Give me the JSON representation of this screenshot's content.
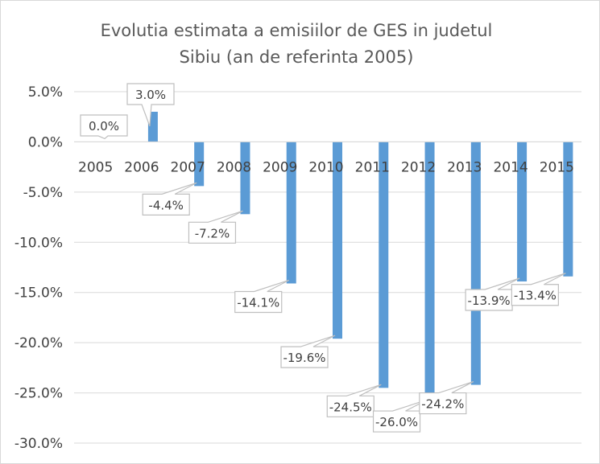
{
  "chart_data": {
    "type": "bar",
    "title": [
      "Evolutia estimata a emisiilor de GES in judetul",
      "Sibiu (an de referinta 2005)"
    ],
    "categories": [
      "2005",
      "2006",
      "2007",
      "2008",
      "2009",
      "2010",
      "2011",
      "2012",
      "2013",
      "2014",
      "2015"
    ],
    "values": [
      0.0,
      3.0,
      -4.4,
      -7.2,
      -14.1,
      -19.6,
      -24.5,
      -26.0,
      -24.2,
      -13.9,
      -13.4
    ],
    "data_labels": [
      "0.0%",
      "3.0%",
      "-4.4%",
      "-7.2%",
      "-14.1%",
      "-19.6%",
      "-24.5%",
      "-26.0%",
      "-24.2%",
      "-13.9%",
      "-13.4%"
    ],
    "yticks": [
      5,
      0,
      -5,
      -10,
      -15,
      -20,
      -25,
      -30
    ],
    "ytick_labels": [
      "5.0%",
      "0.0%",
      "-5.0%",
      "-10.0%",
      "-15.0%",
      "-20.0%",
      "-25.0%",
      "-30.0%"
    ],
    "ylim": [
      -30,
      5
    ],
    "grid": true,
    "legend": "none",
    "colors": {
      "bar": "#5b9bd5",
      "grid": "#d9d9d9",
      "text": "#404040",
      "title": "#595959",
      "callout_border": "#bfbfbf"
    }
  }
}
